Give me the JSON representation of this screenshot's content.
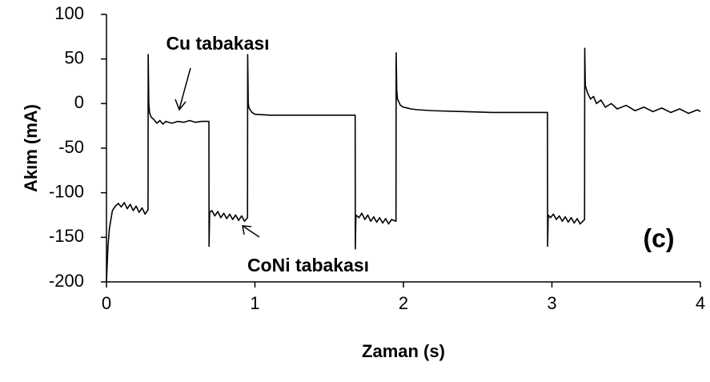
{
  "chart_data": {
    "type": "line",
    "xlabel": "Zaman (s)",
    "ylabel": "Akım (mA)",
    "annotations": [
      "Cu tabakası",
      "CoNi tabakası",
      "(c)"
    ],
    "color": "#000000",
    "x": [
      0,
      0.01,
      0.02,
      0.04,
      0.06,
      0.08,
      0.1,
      0.12,
      0.14,
      0.16,
      0.18,
      0.2,
      0.22,
      0.24,
      0.26,
      0.28,
      0.281,
      0.285,
      0.29,
      0.3,
      0.32,
      0.34,
      0.36,
      0.38,
      0.4,
      0.44,
      0.48,
      0.52,
      0.56,
      0.6,
      0.64,
      0.69,
      0.691,
      0.695,
      0.71,
      0.73,
      0.75,
      0.77,
      0.79,
      0.81,
      0.83,
      0.85,
      0.87,
      0.89,
      0.91,
      0.93,
      0.95,
      0.951,
      0.955,
      0.96,
      0.98,
      1.0,
      1.1,
      1.3,
      1.5,
      1.675,
      1.676,
      1.68,
      1.7,
      1.72,
      1.74,
      1.76,
      1.78,
      1.8,
      1.82,
      1.84,
      1.86,
      1.88,
      1.9,
      1.92,
      1.95,
      1.951,
      1.955,
      1.96,
      1.98,
      2.0,
      2.05,
      2.1,
      2.2,
      2.4,
      2.6,
      2.8,
      2.97,
      2.971,
      2.975,
      2.99,
      3.01,
      3.03,
      3.05,
      3.07,
      3.09,
      3.11,
      3.13,
      3.15,
      3.17,
      3.19,
      3.22,
      3.221,
      3.225,
      3.24,
      3.26,
      3.28,
      3.3,
      3.33,
      3.36,
      3.4,
      3.44,
      3.5,
      3.56,
      3.62,
      3.68,
      3.74,
      3.8,
      3.86,
      3.92,
      3.98,
      4.0
    ],
    "values": [
      -200,
      -160,
      -140,
      -120,
      -115,
      -112,
      -116,
      -111,
      -118,
      -113,
      -120,
      -115,
      -122,
      -117,
      -124,
      -119,
      55,
      0,
      -10,
      -15,
      -18,
      -22,
      -19,
      -23,
      -20,
      -22,
      -20,
      -21,
      -19,
      -21,
      -20,
      -20,
      -160,
      -122,
      -120,
      -126,
      -121,
      -128,
      -123,
      -129,
      -124,
      -130,
      -125,
      -131,
      -126,
      -132,
      -128,
      55,
      0,
      -5,
      -10,
      -12,
      -13,
      -13,
      -13,
      -13,
      -163,
      -125,
      -128,
      -123,
      -130,
      -125,
      -132,
      -127,
      -133,
      -128,
      -134,
      -129,
      -135,
      -130,
      -132,
      57,
      15,
      5,
      -2,
      -4,
      -6,
      -7,
      -8,
      -9,
      -10,
      -10,
      -10,
      -160,
      -125,
      -128,
      -124,
      -130,
      -126,
      -132,
      -127,
      -133,
      -128,
      -134,
      -129,
      -135,
      -130,
      62,
      20,
      12,
      5,
      8,
      0,
      4,
      -4,
      0,
      -6,
      -2,
      -8,
      -4,
      -9,
      -5,
      -10,
      -6,
      -11,
      -7,
      -9
    ],
    "xlim": [
      0,
      4
    ],
    "xticks": [
      0,
      1,
      2,
      3,
      4
    ],
    "ylim": [
      -200,
      100
    ],
    "yticks": [
      -200,
      -150,
      -100,
      -50,
      0,
      50,
      100
    ],
    "grid": false
  }
}
